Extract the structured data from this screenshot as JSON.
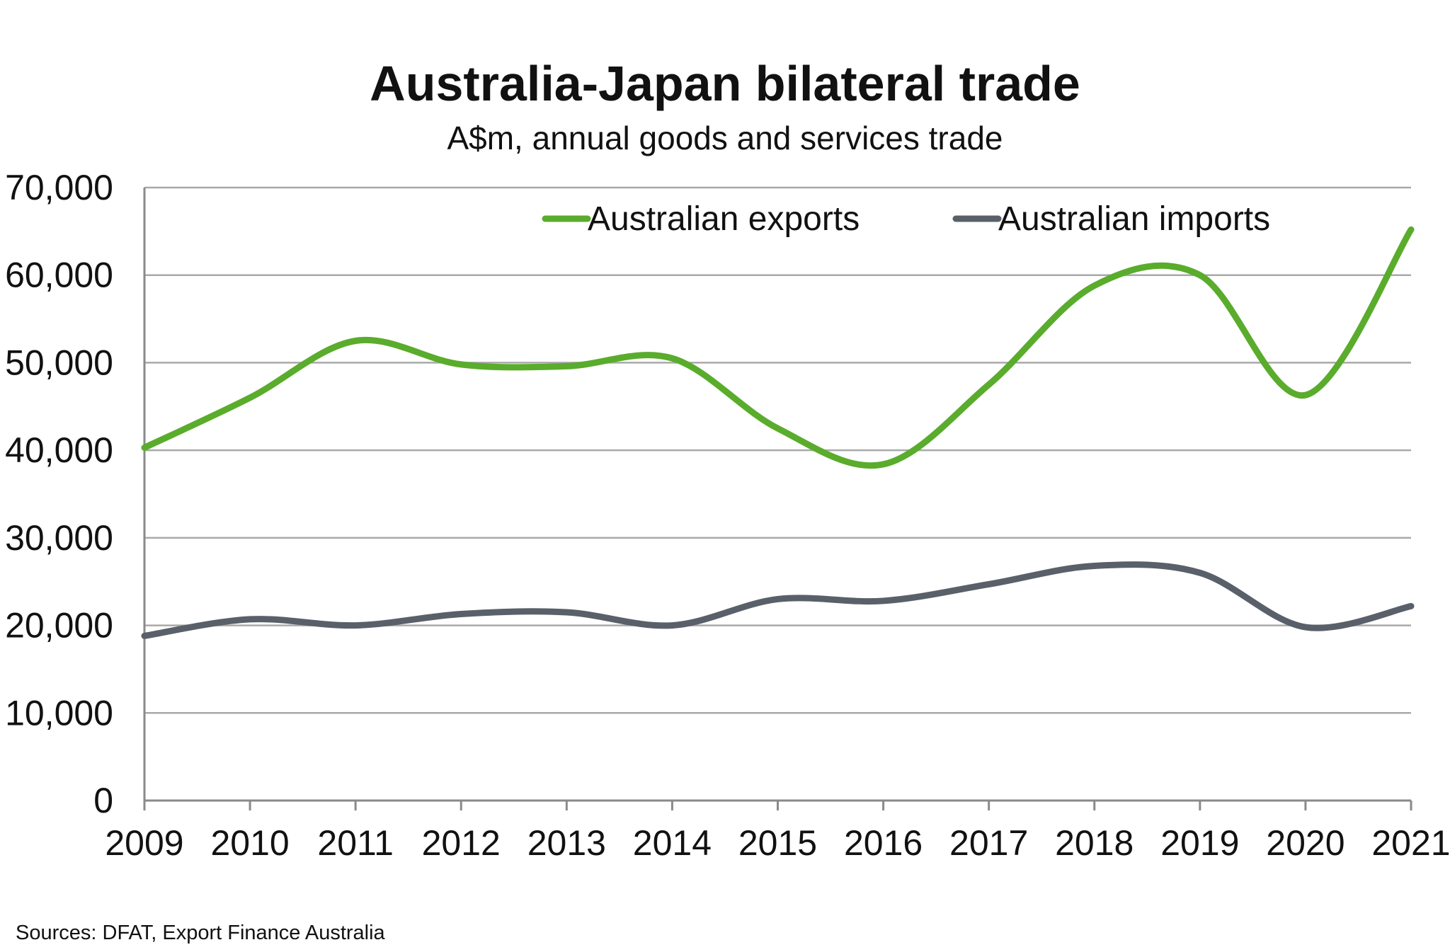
{
  "chart_data": {
    "type": "line",
    "title": "Australia-Japan bilateral trade",
    "subtitle": "A$m, annual goods and services trade",
    "source": "Sources: DFAT, Export Finance Australia",
    "x": [
      2009,
      2010,
      2011,
      2012,
      2013,
      2014,
      2015,
      2016,
      2017,
      2018,
      2019,
      2020,
      2021
    ],
    "x_tick_labels": [
      "2009",
      "2010",
      "2011",
      "2012",
      "2013",
      "2014",
      "2015",
      "2016",
      "2017",
      "2018",
      "2019",
      "2020",
      "2021"
    ],
    "y_tick_labels": [
      "0",
      "10,000",
      "20,000",
      "30,000",
      "40,000",
      "50,000",
      "60,000",
      "70,000"
    ],
    "ylim": [
      0,
      70000
    ],
    "grid": true,
    "legend_position": "top",
    "series": [
      {
        "name": "Australian exports",
        "color": "#5aac2c",
        "values": [
          40300,
          46000,
          52500,
          49800,
          49600,
          50500,
          42500,
          38400,
          47500,
          58800,
          60000,
          46300,
          65200
        ]
      },
      {
        "name": "Australian imports",
        "color": "#59606a",
        "values": [
          18800,
          20700,
          20000,
          21300,
          21500,
          20000,
          23000,
          22800,
          24700,
          26800,
          26000,
          19800,
          22200
        ]
      }
    ]
  }
}
